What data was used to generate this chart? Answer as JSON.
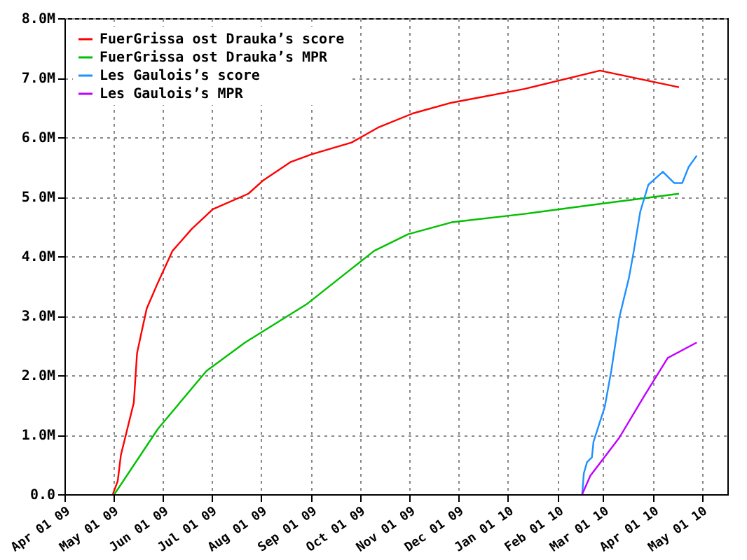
{
  "chart_data": {
    "type": "line",
    "xlim": [
      "2009-04-01",
      "2010-05-17"
    ],
    "xticks": [
      {
        "value": "2009-04-01",
        "label": "Apr 01 09"
      },
      {
        "value": "2009-05-01",
        "label": "May 01 09"
      },
      {
        "value": "2009-06-01",
        "label": "Jun 01 09"
      },
      {
        "value": "2009-07-01",
        "label": "Jul 01 09"
      },
      {
        "value": "2009-08-01",
        "label": "Aug 01 09"
      },
      {
        "value": "2009-09-01",
        "label": "Sep 01 09"
      },
      {
        "value": "2009-10-01",
        "label": "Oct 01 09"
      },
      {
        "value": "2009-11-01",
        "label": "Nov 01 09"
      },
      {
        "value": "2009-12-01",
        "label": "Dec 01 09"
      },
      {
        "value": "2010-01-01",
        "label": "Jan 01 10"
      },
      {
        "value": "2010-02-01",
        "label": "Feb 01 10"
      },
      {
        "value": "2010-03-01",
        "label": "Mar 01 10"
      },
      {
        "value": "2010-04-01",
        "label": "Apr 01 10"
      },
      {
        "value": "2010-05-01",
        "label": "May 01 10"
      }
    ],
    "ylim": [
      0,
      8
    ],
    "yticks": [
      {
        "value": 0,
        "label": "0.0"
      },
      {
        "value": 1,
        "label": "1.0M"
      },
      {
        "value": 2,
        "label": "2.0M"
      },
      {
        "value": 3,
        "label": "3.0M"
      },
      {
        "value": 4,
        "label": "4.0M"
      },
      {
        "value": 5,
        "label": "5.0M"
      },
      {
        "value": 6,
        "label": "6.0M"
      },
      {
        "value": 7,
        "label": "7.0M"
      },
      {
        "value": 8,
        "label": "8.0M"
      }
    ],
    "grid": true,
    "legend": "top left",
    "series": [
      {
        "name": "FuerGrissa ost Drauka’s score",
        "color": "#ff0000",
        "x": [
          "2009-05-01",
          "2009-05-04",
          "2009-05-06",
          "2009-05-10",
          "2009-05-14",
          "2009-05-16",
          "2009-05-19",
          "2009-05-22",
          "2009-05-29",
          "2009-06-07",
          "2009-06-19",
          "2009-07-02",
          "2009-07-24",
          "2009-08-02",
          "2009-08-19",
          "2009-09-01",
          "2009-09-16",
          "2009-09-26",
          "2009-10-13",
          "2009-11-03",
          "2009-11-27",
          "2010-01-11",
          "2010-02-27",
          "2010-04-17"
        ],
        "values": [
          0,
          0.22,
          0.66,
          1.1,
          1.54,
          2.37,
          2.75,
          3.12,
          3.56,
          4.09,
          4.46,
          4.79,
          5.05,
          5.27,
          5.58,
          5.71,
          5.83,
          5.91,
          6.17,
          6.4,
          6.58,
          6.81,
          7.12,
          6.84
        ]
      },
      {
        "name": "FuerGrissa ost Drauka’s MPR",
        "color": "#00c000",
        "x": [
          "2009-05-02",
          "2009-05-29",
          "2009-06-28",
          "2009-07-22",
          "2009-08-29",
          "2009-10-10",
          "2009-10-31",
          "2009-11-27",
          "2010-01-11",
          "2010-02-27",
          "2010-04-17"
        ],
        "values": [
          0,
          1.1,
          2.07,
          2.55,
          3.19,
          4.09,
          4.37,
          4.57,
          4.71,
          4.88,
          5.05
        ]
      },
      {
        "name": "Les Gaulois’s score",
        "color": "#1e90ff",
        "x": [
          "2010-02-16",
          "2010-02-17",
          "2010-02-19",
          "2010-02-22",
          "2010-02-23",
          "2010-03-02",
          "2010-03-06",
          "2010-03-11",
          "2010-03-17",
          "2010-03-20",
          "2010-03-24",
          "2010-03-29",
          "2010-04-07",
          "2010-04-14",
          "2010-04-19",
          "2010-04-23",
          "2010-04-28"
        ],
        "values": [
          0,
          0.35,
          0.54,
          0.62,
          0.88,
          1.47,
          2.07,
          2.97,
          3.64,
          4.09,
          4.75,
          5.2,
          5.42,
          5.23,
          5.23,
          5.5,
          5.69
        ]
      },
      {
        "name": "Les Gaulois’s MPR",
        "color": "#c000ff",
        "x": [
          "2010-02-16",
          "2010-02-21",
          "2010-03-11",
          "2010-03-26",
          "2010-04-10",
          "2010-04-28"
        ],
        "values": [
          0,
          0.31,
          0.95,
          1.63,
          2.29,
          2.55
        ]
      }
    ]
  }
}
